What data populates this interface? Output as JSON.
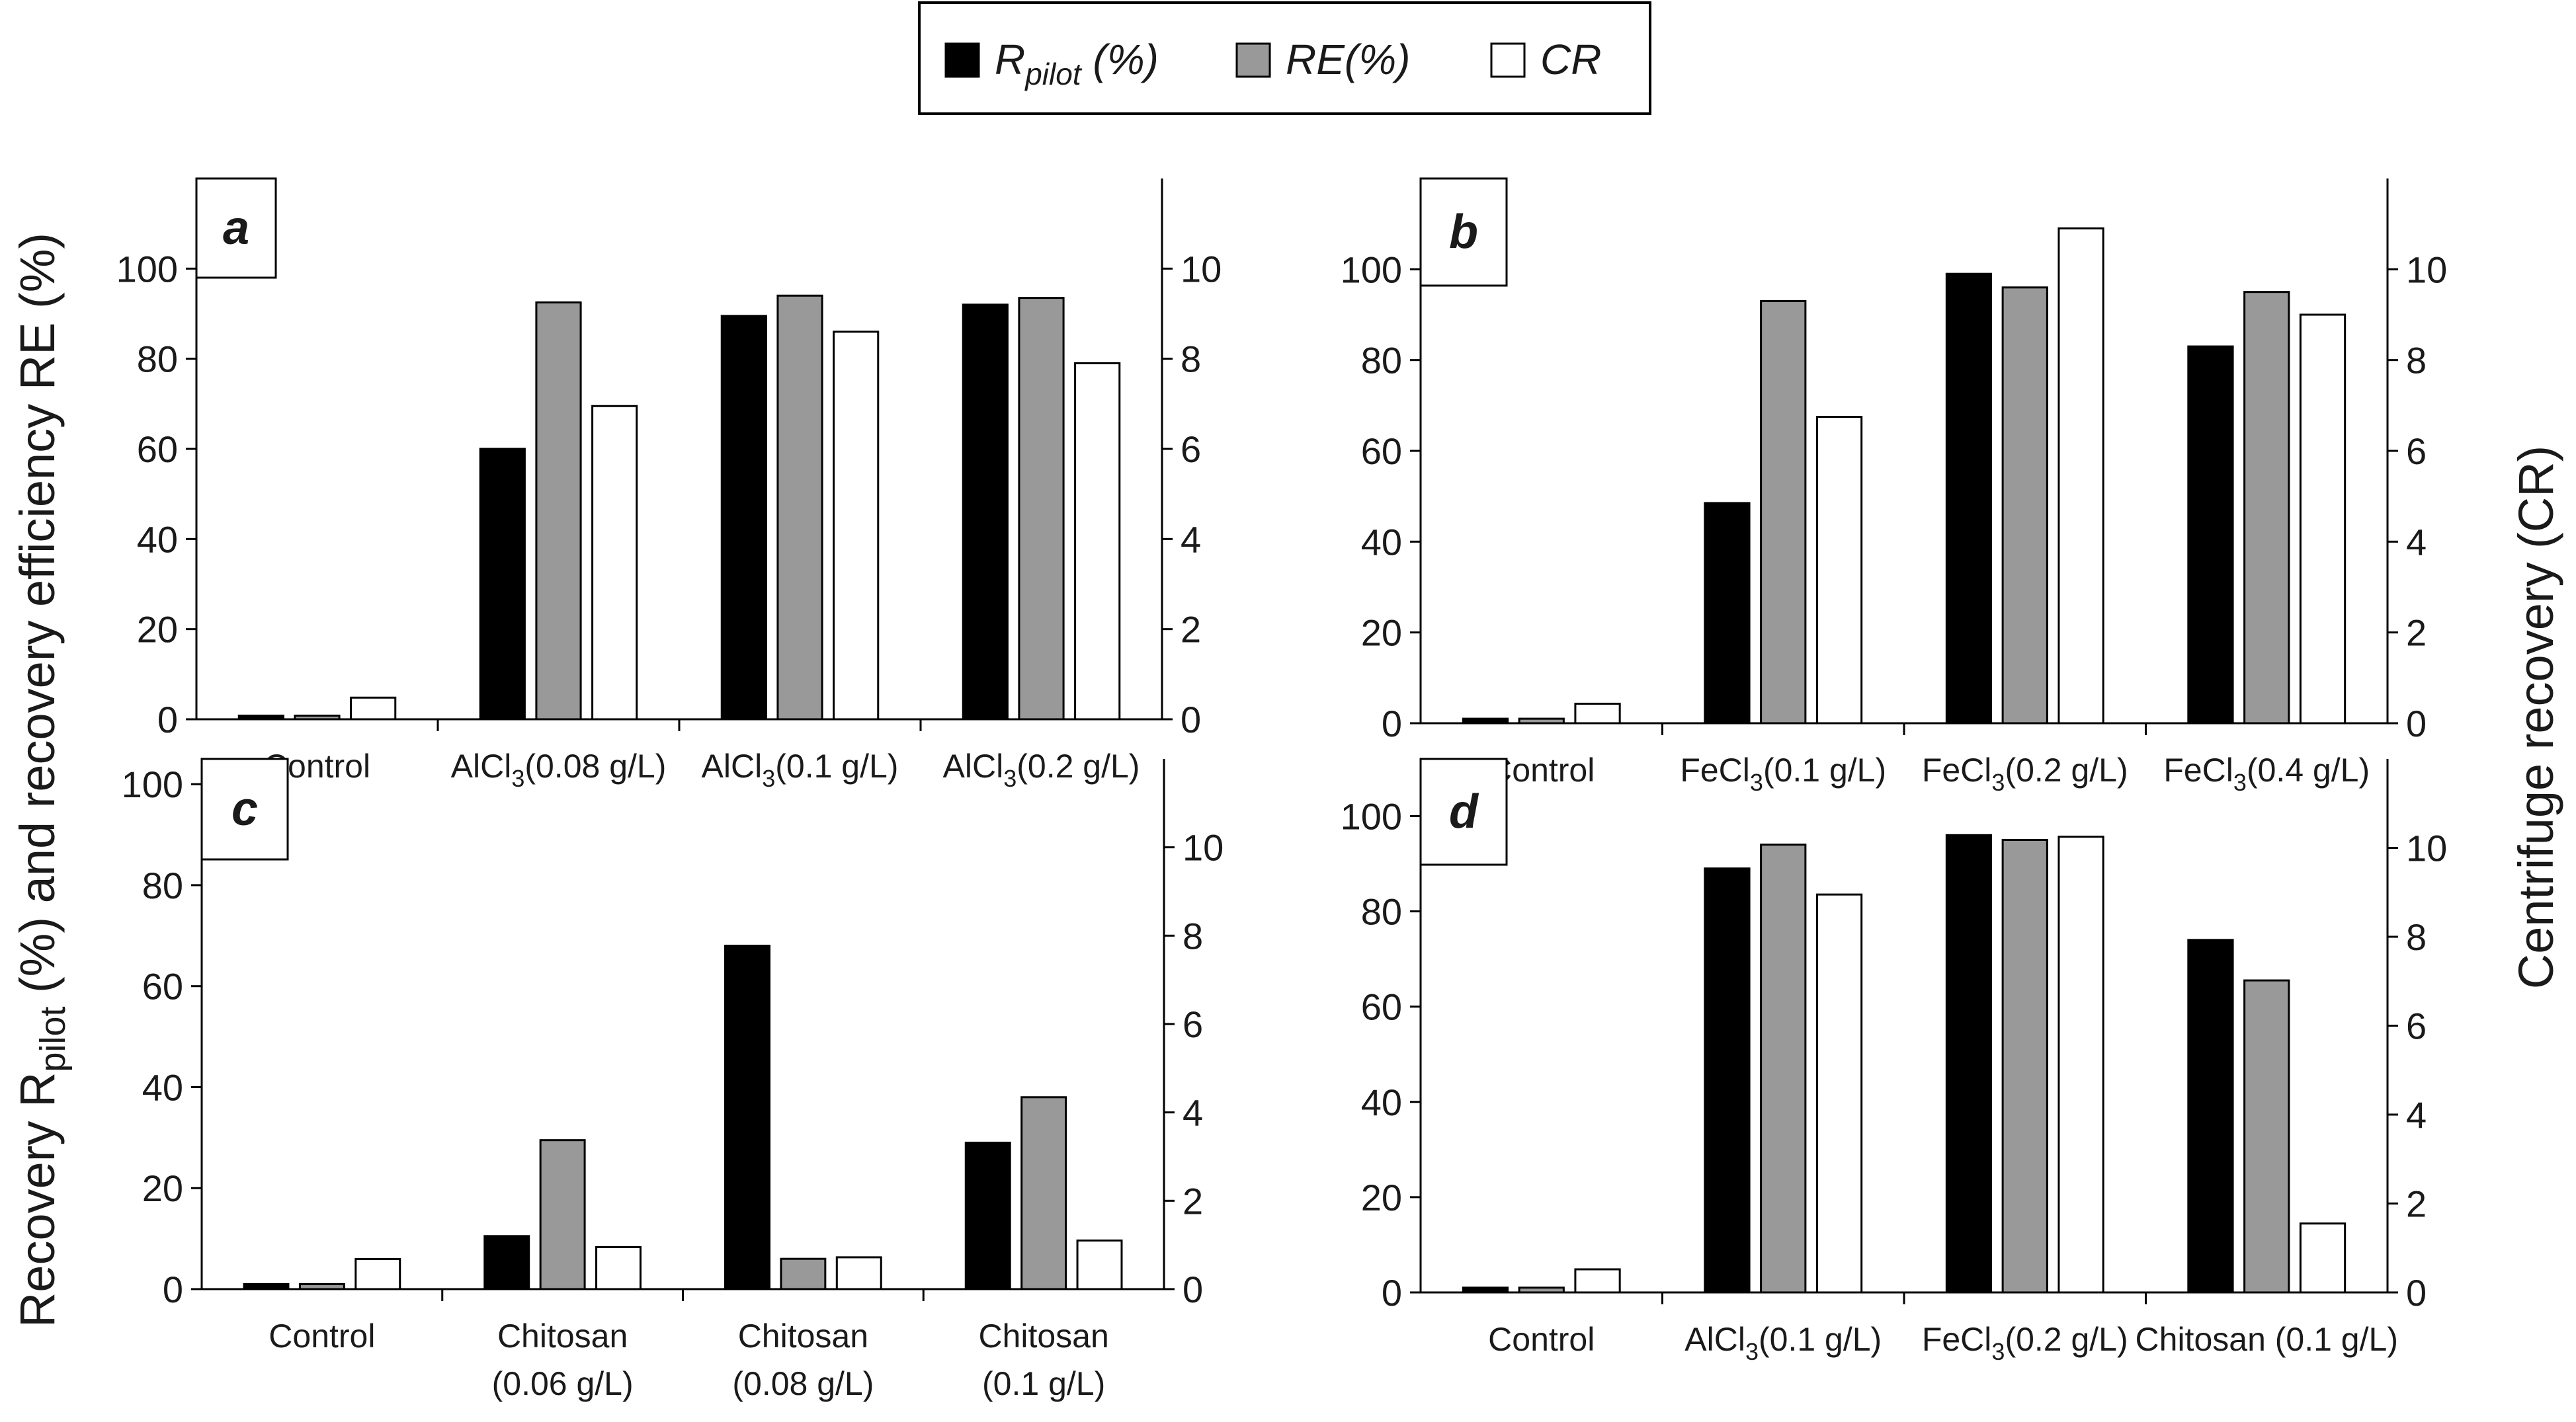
{
  "legend": {
    "items": [
      {
        "key": "rpilot",
        "base": "R",
        "sub": "pilot",
        "suffix": " (%)",
        "color": "#000000"
      },
      {
        "key": "re",
        "base": "RE(%)",
        "sub": "",
        "suffix": "",
        "color": "#999999"
      },
      {
        "key": "cr",
        "base": "CR",
        "sub": "",
        "suffix": "",
        "color": "#ffffff"
      }
    ]
  },
  "left_axis_label": {
    "pre": "Recovery R",
    "sub": "pilot",
    "post": " (%) and recovery efficiency RE (%)"
  },
  "right_axis_label": "Centrifuge recovery (CR)",
  "chart_data": [
    {
      "type": "bar",
      "panel": "a",
      "categories": [
        {
          "lines": [
            [
              {
                "t": "Control"
              }
            ]
          ]
        },
        {
          "lines": [
            [
              {
                "t": "AlCl"
              },
              {
                "t": "3",
                "sub": true
              },
              {
                "t": "(0.08 g/L)"
              }
            ]
          ]
        },
        {
          "lines": [
            [
              {
                "t": "AlCl"
              },
              {
                "t": "3",
                "sub": true
              },
              {
                "t": "(0.1 g/L)"
              }
            ]
          ]
        },
        {
          "lines": [
            [
              {
                "t": "AlCl"
              },
              {
                "t": "3",
                "sub": true
              },
              {
                "t": "(0.2 g/L)"
              }
            ]
          ]
        }
      ],
      "series": [
        {
          "key": "rpilot",
          "axis": "left",
          "values": [
            0.8,
            60,
            89.5,
            92
          ]
        },
        {
          "key": "re",
          "axis": "left",
          "values": [
            0.8,
            92.5,
            94,
            93.5
          ]
        },
        {
          "key": "cr",
          "axis": "right",
          "values": [
            0.48,
            6.95,
            8.6,
            7.9
          ]
        }
      ],
      "ylim_left": [
        0,
        120
      ],
      "yticks_left": [
        0,
        20,
        40,
        60,
        80,
        100
      ],
      "ylim_right": [
        0,
        12
      ],
      "yticks_right": [
        0,
        2,
        4,
        6,
        8,
        10
      ]
    },
    {
      "type": "bar",
      "panel": "b",
      "categories": [
        {
          "lines": [
            [
              {
                "t": "Control"
              }
            ]
          ]
        },
        {
          "lines": [
            [
              {
                "t": "FeCl"
              },
              {
                "t": "3",
                "sub": true
              },
              {
                "t": "(0.1 g/L)"
              }
            ]
          ]
        },
        {
          "lines": [
            [
              {
                "t": "FeCl"
              },
              {
                "t": "3",
                "sub": true
              },
              {
                "t": "(0.2 g/L)"
              }
            ]
          ]
        },
        {
          "lines": [
            [
              {
                "t": "FeCl"
              },
              {
                "t": "3",
                "sub": true
              },
              {
                "t": "(0.4 g/L)"
              }
            ]
          ]
        }
      ],
      "series": [
        {
          "key": "rpilot",
          "axis": "left",
          "values": [
            1,
            48.5,
            99,
            83
          ]
        },
        {
          "key": "re",
          "axis": "left",
          "values": [
            1,
            93,
            96,
            95
          ]
        },
        {
          "key": "cr",
          "axis": "right",
          "values": [
            0.43,
            6.75,
            10.9,
            9.0
          ]
        }
      ],
      "ylim_left": [
        0,
        120
      ],
      "yticks_left": [
        0,
        20,
        40,
        60,
        80,
        100
      ],
      "ylim_right": [
        0,
        12
      ],
      "yticks_right": [
        0,
        2,
        4,
        6,
        8,
        10
      ]
    },
    {
      "type": "bar",
      "panel": "c",
      "categories": [
        {
          "lines": [
            [
              {
                "t": "Control"
              }
            ]
          ]
        },
        {
          "lines": [
            [
              {
                "t": "Chitosan"
              }
            ],
            [
              {
                "t": "(0.06 g/L)"
              }
            ]
          ]
        },
        {
          "lines": [
            [
              {
                "t": "Chitosan"
              }
            ],
            [
              {
                "t": "(0.08 g/L)"
              }
            ]
          ]
        },
        {
          "lines": [
            [
              {
                "t": "Chitosan"
              }
            ],
            [
              {
                "t": "(0.1 g/L)"
              }
            ]
          ]
        }
      ],
      "series": [
        {
          "key": "rpilot",
          "axis": "left",
          "values": [
            1,
            10.5,
            68,
            29
          ]
        },
        {
          "key": "re",
          "axis": "left",
          "values": [
            1,
            29.5,
            6,
            38
          ]
        },
        {
          "key": "cr",
          "axis": "right",
          "values": [
            0.68,
            0.95,
            0.72,
            1.1
          ]
        }
      ],
      "ylim_left": [
        0,
        105
      ],
      "yticks_left": [
        0,
        20,
        40,
        60,
        80,
        100
      ],
      "ylim_right": [
        0,
        12
      ],
      "yticks_right": [
        0,
        2,
        4,
        6,
        8,
        10
      ]
    },
    {
      "type": "bar",
      "panel": "d",
      "categories": [
        {
          "lines": [
            [
              {
                "t": "Control"
              }
            ]
          ]
        },
        {
          "lines": [
            [
              {
                "t": "AlCl"
              },
              {
                "t": "3",
                "sub": true
              },
              {
                "t": "(0.1 g/L)"
              }
            ]
          ]
        },
        {
          "lines": [
            [
              {
                "t": "FeCl"
              },
              {
                "t": "3",
                "sub": true
              },
              {
                "t": "(0.2 g/L)"
              }
            ]
          ]
        },
        {
          "lines": [
            [
              {
                "t": "Chitosan (0.1 g/L)"
              }
            ]
          ]
        }
      ],
      "series": [
        {
          "key": "rpilot",
          "axis": "left",
          "values": [
            1,
            89,
            96,
            74
          ]
        },
        {
          "key": "re",
          "axis": "left",
          "values": [
            1,
            94,
            95,
            65.5
          ]
        },
        {
          "key": "cr",
          "axis": "right",
          "values": [
            0.52,
            8.95,
            10.25,
            1.55
          ]
        }
      ],
      "ylim_left": [
        0,
        112
      ],
      "yticks_left": [
        0,
        20,
        40,
        60,
        80,
        100
      ],
      "ylim_right": [
        0,
        12
      ],
      "yticks_right": [
        0,
        2,
        4,
        6,
        8,
        10
      ]
    }
  ]
}
